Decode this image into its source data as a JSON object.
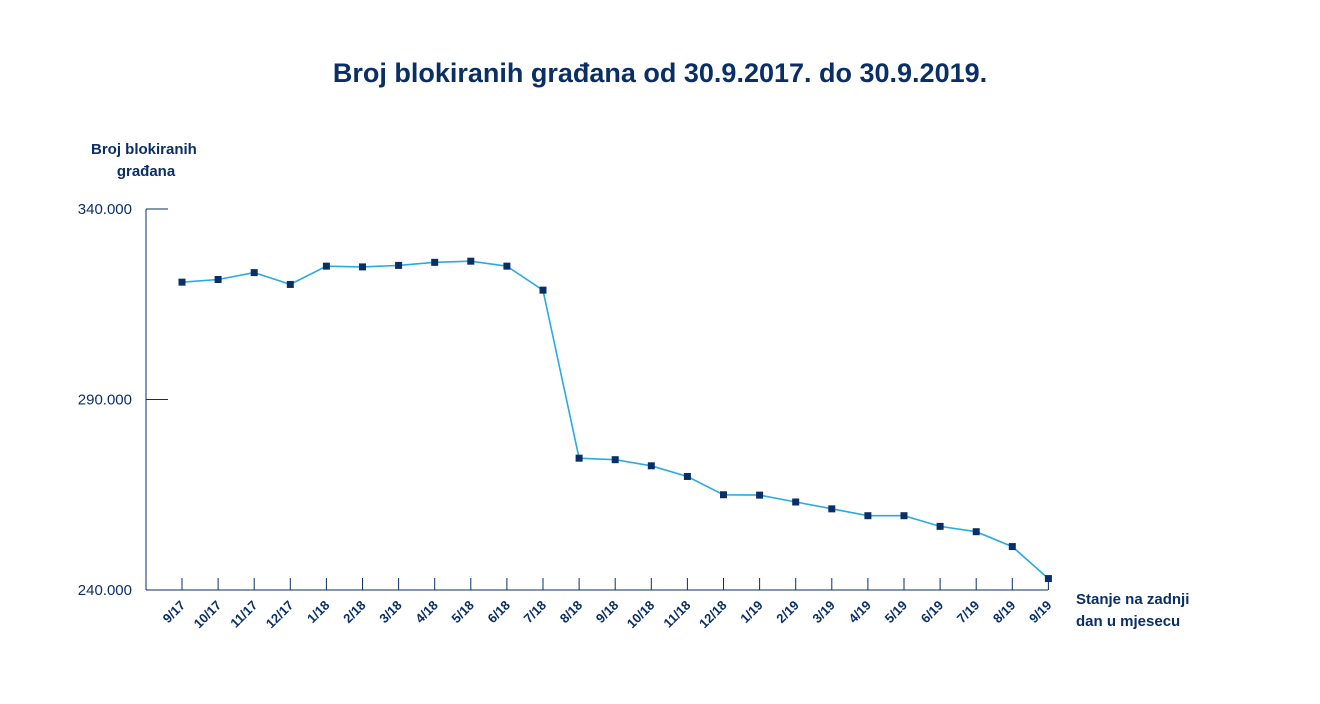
{
  "chart_data": {
    "type": "line",
    "title": "Broj blokiranih građana od 30.9.2017. do 30.9.2019.",
    "ylabel": [
      "Broj blokiranih",
      "građana"
    ],
    "xlabel": [
      "Stanje na zadnji",
      "dan u mjesecu"
    ],
    "ylim": [
      240000,
      340000
    ],
    "yticks": [
      340000,
      290000,
      240000
    ],
    "ytick_labels": [
      "340.000",
      "290.000",
      "240.000"
    ],
    "grid": false,
    "legend": "none",
    "categories": [
      "9/17",
      "10/17",
      "11/17",
      "12/17",
      "1/18",
      "2/18",
      "3/18",
      "4/18",
      "5/18",
      "6/18",
      "7/18",
      "8/18",
      "9/18",
      "10/18",
      "11/18",
      "12/18",
      "1/19",
      "2/19",
      "3/19",
      "4/19",
      "5/19",
      "6/19",
      "7/19",
      "8/19",
      "9/19"
    ],
    "values": [
      320800,
      321500,
      323300,
      320200,
      325000,
      324800,
      325200,
      326000,
      326300,
      325000,
      318700,
      274600,
      274200,
      272600,
      269800,
      265000,
      264900,
      263100,
      261300,
      259500,
      259500,
      256700,
      255300,
      251400,
      243000
    ],
    "colors": {
      "line": "#29abe2",
      "marker": "#0a2f66",
      "text": "#0a2f66"
    }
  }
}
